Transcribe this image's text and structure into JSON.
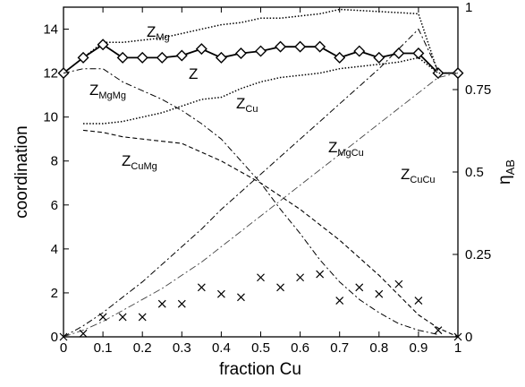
{
  "chart_data": {
    "type": "line",
    "title": "",
    "xlabel": "fraction Cu",
    "ylabel": "coordination",
    "y2label": "η_AB",
    "xlim": [
      0,
      1
    ],
    "ylim": [
      0,
      15
    ],
    "y2lim": [
      0,
      1
    ],
    "grid": false,
    "x_ticks": [
      "0",
      "0.1",
      "0.2",
      "0.3",
      "0.4",
      "0.5",
      "0.6",
      "0.7",
      "0.8",
      "0.9",
      "1"
    ],
    "y_ticks": [
      "0",
      "2",
      "4",
      "6",
      "8",
      "10",
      "12",
      "14"
    ],
    "y2_ticks": [
      "0",
      "0.25",
      "0.5",
      "0.75",
      "1"
    ],
    "labels": {
      "z": {
        "base": "Z",
        "sub": ""
      },
      "z_mg": {
        "base": "Z",
        "sub": "Mg"
      },
      "z_cu": {
        "base": "Z",
        "sub": "Cu"
      },
      "z_mgmg": {
        "base": "Z",
        "sub": "MgMg"
      },
      "z_cumg": {
        "base": "Z",
        "sub": "CuMg"
      },
      "z_mgcu": {
        "base": "Z",
        "sub": "MgCu"
      },
      "z_cucu": {
        "base": "Z",
        "sub": "CuCu"
      }
    },
    "series": [
      {
        "key": "Z_Mg",
        "style": "dotted",
        "axis": "left",
        "x": [
          0.05,
          0.1,
          0.15,
          0.2,
          0.25,
          0.3,
          0.35,
          0.4,
          0.45,
          0.5,
          0.55,
          0.6,
          0.65,
          0.7,
          0.75,
          0.8,
          0.85,
          0.9,
          0.95
        ],
        "y": [
          12.7,
          13.4,
          13.4,
          13.5,
          13.6,
          13.8,
          14.0,
          14.2,
          14.3,
          14.5,
          14.5,
          14.6,
          14.7,
          14.9,
          14.85,
          14.8,
          14.75,
          14.7,
          12.0
        ]
      },
      {
        "key": "Z",
        "style": "solid-diamond",
        "axis": "left",
        "x": [
          0,
          0.05,
          0.1,
          0.15,
          0.2,
          0.25,
          0.3,
          0.35,
          0.4,
          0.45,
          0.5,
          0.55,
          0.6,
          0.65,
          0.7,
          0.75,
          0.8,
          0.85,
          0.9,
          0.95,
          1.0
        ],
        "y": [
          12.0,
          12.7,
          13.3,
          12.7,
          12.7,
          12.7,
          12.8,
          13.1,
          12.7,
          12.9,
          13.0,
          13.2,
          13.2,
          13.2,
          12.7,
          13.0,
          12.7,
          12.9,
          12.9,
          12.0,
          12.0
        ]
      },
      {
        "key": "Z_Cu",
        "style": "dotted",
        "axis": "left",
        "x": [
          0.05,
          0.1,
          0.15,
          0.2,
          0.25,
          0.3,
          0.35,
          0.4,
          0.45,
          0.5,
          0.55,
          0.6,
          0.65,
          0.7,
          0.75,
          0.8,
          0.85,
          0.9,
          0.95,
          1.0
        ],
        "y": [
          9.7,
          9.7,
          9.8,
          10.0,
          10.2,
          10.5,
          10.8,
          10.9,
          11.3,
          11.6,
          11.8,
          11.9,
          12.0,
          12.2,
          12.3,
          12.4,
          12.5,
          12.7,
          12.0,
          12.0
        ]
      },
      {
        "key": "Z_MgMg",
        "style": "dashdot",
        "axis": "left",
        "x": [
          0,
          0.05,
          0.1,
          0.15,
          0.2,
          0.25,
          0.3,
          0.35,
          0.4,
          0.45,
          0.5,
          0.55,
          0.6,
          0.65,
          0.7,
          0.75,
          0.8,
          0.85,
          0.9,
          0.95
        ],
        "y": [
          12.0,
          12.2,
          12.2,
          11.6,
          11.2,
          10.8,
          10.3,
          9.7,
          9.0,
          8.0,
          7.0,
          5.8,
          4.7,
          3.5,
          2.5,
          1.7,
          1.1,
          0.6,
          0.3,
          0.1
        ]
      },
      {
        "key": "Z_CuMg",
        "style": "dashed",
        "axis": "left",
        "x": [
          0.05,
          0.1,
          0.15,
          0.2,
          0.25,
          0.3,
          0.35,
          0.4,
          0.45,
          0.5,
          0.55,
          0.6,
          0.65,
          0.7,
          0.75,
          0.8,
          0.85,
          0.9,
          0.95,
          1.0
        ],
        "y": [
          9.4,
          9.3,
          9.1,
          9.0,
          8.9,
          8.8,
          8.4,
          8.0,
          7.5,
          7.0,
          6.4,
          5.8,
          5.1,
          4.4,
          3.6,
          2.8,
          1.9,
          1.0,
          0.4,
          0.0
        ]
      },
      {
        "key": "Z_MgCu",
        "style": "dashdot",
        "axis": "left",
        "x": [
          0,
          0.05,
          0.1,
          0.15,
          0.2,
          0.25,
          0.3,
          0.35,
          0.4,
          0.45,
          0.5,
          0.55,
          0.6,
          0.65,
          0.7,
          0.75,
          0.8,
          0.85,
          0.9,
          0.95
        ],
        "y": [
          0.0,
          0.5,
          1.1,
          1.8,
          2.5,
          3.3,
          4.1,
          4.9,
          5.8,
          6.6,
          7.4,
          8.2,
          9.0,
          9.8,
          10.6,
          11.4,
          12.2,
          13.1,
          14.0,
          12.1
        ]
      },
      {
        "key": "Z_CuCu",
        "style": "dashdot-light",
        "axis": "left",
        "x": [
          0,
          0.05,
          0.1,
          0.15,
          0.2,
          0.25,
          0.3,
          0.35,
          0.4,
          0.45,
          0.5,
          0.55,
          0.6,
          0.65,
          0.7,
          0.75,
          0.8,
          0.85,
          0.9,
          0.95,
          1.0
        ],
        "y": [
          0.0,
          0.3,
          0.7,
          1.2,
          1.7,
          2.2,
          2.8,
          3.4,
          4.1,
          4.8,
          5.5,
          6.2,
          6.9,
          7.6,
          8.3,
          9.0,
          9.7,
          10.4,
          11.1,
          11.8,
          12.0
        ]
      },
      {
        "key": "eta_AB",
        "style": "cross",
        "axis": "right",
        "x": [
          0,
          0.05,
          0.1,
          0.15,
          0.2,
          0.25,
          0.3,
          0.35,
          0.4,
          0.45,
          0.5,
          0.55,
          0.6,
          0.65,
          0.7,
          0.75,
          0.8,
          0.85,
          0.9,
          0.95,
          1.0
        ],
        "y": [
          0.0,
          0.01,
          0.06,
          0.06,
          0.06,
          0.1,
          0.1,
          0.15,
          0.13,
          0.12,
          0.18,
          0.15,
          0.18,
          0.19,
          0.11,
          0.15,
          0.13,
          0.16,
          0.11,
          0.02,
          0.0
        ]
      }
    ]
  }
}
